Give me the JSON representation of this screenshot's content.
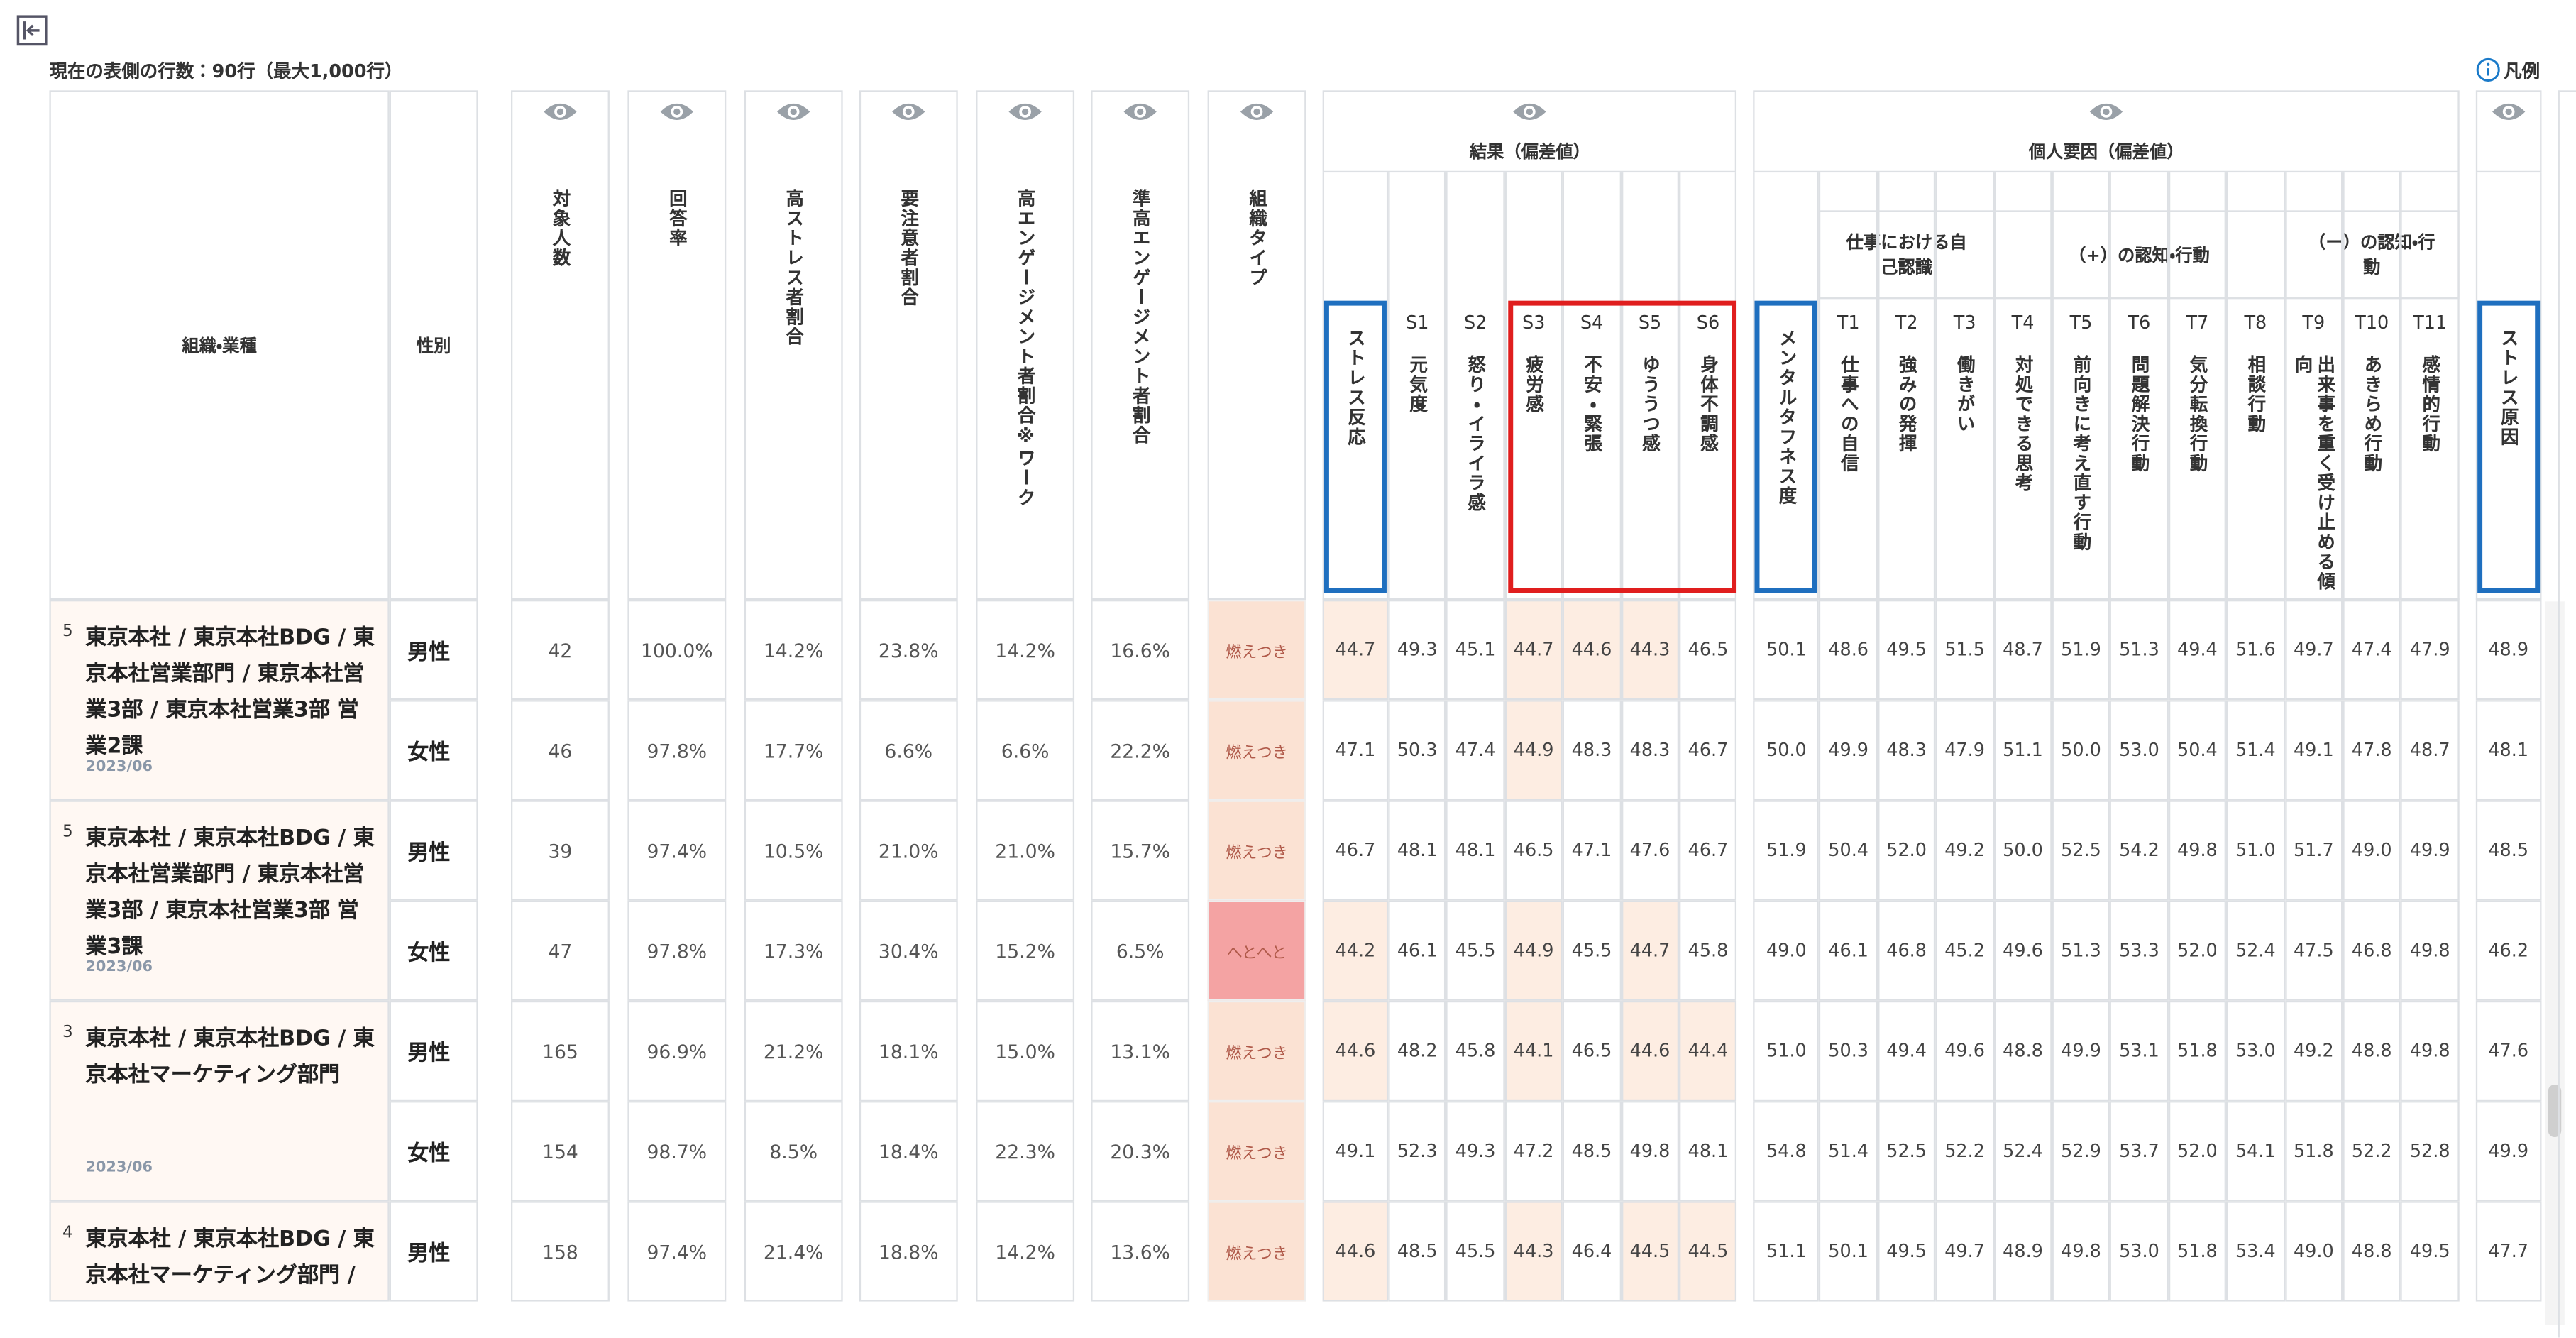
{
  "toolbar": {
    "row_count": "現在の表側の行数：90行（最大1,000行）",
    "legend": "凡例"
  },
  "table": {
    "org_header": "組織・業種",
    "gender_header": "性別",
    "metric_headers": [
      "対象人数",
      "回答率",
      "高ストレス者割合",
      "要注意者割合",
      "高エンゲージメント者割合※ワーク",
      "準高エンゲージメント者割合",
      "組織タイプ"
    ],
    "score_groups": [
      {
        "label": "結果（偏差値）",
        "columns": [
          {
            "code": null,
            "label": "ストレス反応"
          },
          {
            "code": "S1",
            "label": "元気度"
          },
          {
            "code": "S2",
            "label": "怒り・イライラ感"
          },
          {
            "code": "S3",
            "label": "疲労感"
          },
          {
            "code": "S4",
            "label": "不安・緊張"
          },
          {
            "code": "S5",
            "label": "ゆううつ感"
          },
          {
            "code": "S6",
            "label": "身体不調感"
          }
        ],
        "subgroups": []
      },
      {
        "label": "個人要因（偏差値）",
        "columns": [
          {
            "code": null,
            "label": "メンタルタフネス度"
          }
        ],
        "subgroups": [
          {
            "label": "仕事における自己認識",
            "columns": [
              {
                "code": "T1",
                "label": "仕事への自信"
              },
              {
                "code": "T2",
                "label": "強みの発揮"
              },
              {
                "code": "T3",
                "label": "働きがい"
              }
            ]
          },
          {
            "label": "（+）の認知・行動",
            "columns": [
              {
                "code": "T4",
                "label": "対処できる思考"
              },
              {
                "code": "T5",
                "label": "前向きに考え直す行動"
              },
              {
                "code": "T6",
                "label": "問題解決行動"
              },
              {
                "code": "T7",
                "label": "気分転換行動"
              },
              {
                "code": "T8",
                "label": "相談行動"
              }
            ]
          },
          {
            "label": "（ー）の認知・行動",
            "columns": [
              {
                "code": "T9",
                "label": "出来事を重く受け止める傾向"
              },
              {
                "code": "T10",
                "label": "あきらめ行動"
              },
              {
                "code": "T11",
                "label": "感情的行動"
              }
            ]
          }
        ]
      },
      {
        "label": null,
        "columns": [
          {
            "code": null,
            "label": "ストレス原因"
          }
        ],
        "subgroups": []
      }
    ],
    "rows": [
      {
        "level": "5",
        "org": "東京本社 / 東京本社BDG / 東京本社営業部門 / 東京本社営業3部 / 東京本社営業3部 営業2課",
        "date": "2023/06",
        "genders": [
          {
            "gender": "男性",
            "metrics": [
              "42",
              "100.0%",
              "14.2%",
              "23.8%",
              "14.2%",
              "16.6%"
            ],
            "org_type": {
              "label": "燃えつき",
              "color": "#fbe2d3"
            },
            "scores": [
              "44.7",
              "49.3",
              "45.1",
              "44.7",
              "44.6",
              "44.3",
              "46.5",
              "50.1",
              "48.6",
              "49.5",
              "51.5",
              "48.7",
              "51.9",
              "51.3",
              "49.4",
              "51.6",
              "49.7",
              "47.4",
              "47.9",
              "48.9"
            ]
          },
          {
            "gender": "女性",
            "metrics": [
              "46",
              "97.8%",
              "17.7%",
              "6.6%",
              "6.6%",
              "22.2%"
            ],
            "org_type": {
              "label": "燃えつき",
              "color": "#fbe2d3"
            },
            "scores": [
              "47.1",
              "50.3",
              "47.4",
              "44.9",
              "48.3",
              "48.3",
              "46.7",
              "50.0",
              "49.9",
              "48.3",
              "47.9",
              "51.1",
              "50.0",
              "53.0",
              "50.4",
              "51.4",
              "49.1",
              "47.8",
              "48.7",
              "48.1"
            ]
          }
        ]
      },
      {
        "level": "5",
        "org": "東京本社 / 東京本社BDG / 東京本社営業部門 / 東京本社営業3部 / 東京本社営業3部 営業3課",
        "date": "2023/06",
        "genders": [
          {
            "gender": "男性",
            "metrics": [
              "39",
              "97.4%",
              "10.5%",
              "21.0%",
              "21.0%",
              "15.7%"
            ],
            "org_type": {
              "label": "燃えつき",
              "color": "#fbe2d3"
            },
            "scores": [
              "46.7",
              "48.1",
              "48.1",
              "46.5",
              "47.1",
              "47.6",
              "46.7",
              "51.9",
              "50.4",
              "52.0",
              "49.2",
              "50.0",
              "52.5",
              "54.2",
              "49.8",
              "51.0",
              "51.7",
              "49.0",
              "49.9",
              "48.5"
            ]
          },
          {
            "gender": "女性",
            "metrics": [
              "47",
              "97.8%",
              "17.3%",
              "30.4%",
              "15.2%",
              "6.5%"
            ],
            "org_type": {
              "label": "へとへと",
              "color": "#f4a3a3"
            },
            "scores": [
              "44.2",
              "46.1",
              "45.5",
              "44.9",
              "45.5",
              "44.7",
              "45.8",
              "49.0",
              "46.1",
              "46.8",
              "45.2",
              "49.6",
              "51.3",
              "53.3",
              "52.0",
              "52.4",
              "47.5",
              "46.8",
              "49.8",
              "46.2"
            ]
          }
        ]
      },
      {
        "level": "3",
        "org": "東京本社 / 東京本社BDG / 東京本社マーケティング部門",
        "date": "2023/06",
        "genders": [
          {
            "gender": "男性",
            "metrics": [
              "165",
              "96.9%",
              "21.2%",
              "18.1%",
              "15.0%",
              "13.1%"
            ],
            "org_type": {
              "label": "燃えつき",
              "color": "#fbe2d3"
            },
            "scores": [
              "44.6",
              "48.2",
              "45.8",
              "44.1",
              "46.5",
              "44.6",
              "44.4",
              "51.0",
              "50.3",
              "49.4",
              "49.6",
              "48.8",
              "49.9",
              "53.1",
              "51.8",
              "53.0",
              "49.2",
              "48.8",
              "49.8",
              "47.6"
            ]
          },
          {
            "gender": "女性",
            "metrics": [
              "154",
              "98.7%",
              "8.5%",
              "18.4%",
              "22.3%",
              "20.3%"
            ],
            "org_type": {
              "label": "燃えつき",
              "color": "#fbe2d3"
            },
            "scores": [
              "49.1",
              "52.3",
              "49.3",
              "47.2",
              "48.5",
              "49.8",
              "48.1",
              "54.8",
              "51.4",
              "52.5",
              "52.2",
              "52.4",
              "52.9",
              "53.7",
              "52.0",
              "54.1",
              "51.8",
              "52.2",
              "52.8",
              "49.9"
            ]
          }
        ]
      },
      {
        "level": "4",
        "org": "東京本社 / 東京本社BDG / 東京本社マーケティング部門 / 東京本社マーケティン",
        "date": null,
        "genders": [
          {
            "gender": "男性",
            "metrics": [
              "158",
              "97.4%",
              "21.4%",
              "18.8%",
              "14.2%",
              "13.6%"
            ],
            "org_type": {
              "label": "燃えつき",
              "color": "#fbe2d3"
            },
            "scores": [
              "44.6",
              "48.5",
              "45.5",
              "44.3",
              "46.4",
              "44.5",
              "44.5",
              "51.1",
              "50.1",
              "49.5",
              "49.7",
              "48.9",
              "49.8",
              "53.0",
              "51.8",
              "53.4",
              "49.0",
              "48.8",
              "49.5",
              "47.7"
            ]
          }
        ]
      }
    ]
  }
}
